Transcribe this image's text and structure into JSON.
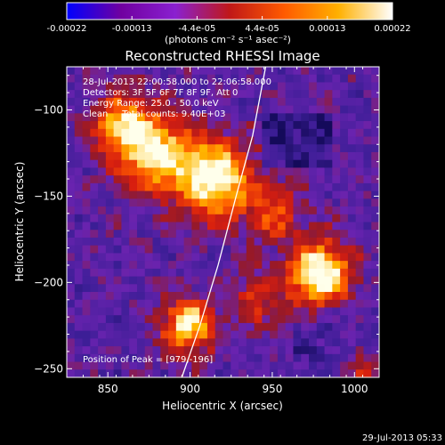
{
  "chart_data": {
    "type": "heatmap",
    "title": "Reconstructed RHESSI Image",
    "colorbar": {
      "tick_labels": [
        "-0.00022",
        "-0.00013",
        "-4.4e-05",
        "4.4e-05",
        "0.00013",
        "0.00022"
      ],
      "units": "(photons cm⁻² s⁻¹ asec⁻²)",
      "colors": [
        "#0000ff",
        "#7000a0",
        "#8a20d0",
        "#c01818",
        "#ff5a00",
        "#ffb000",
        "#ffffff"
      ]
    },
    "xlabel": "Heliocentric X (arcsec)",
    "ylabel": "Heliocentric Y (arcsec)",
    "xlim": [
      825,
      1015
    ],
    "ylim": [
      -255,
      -75
    ],
    "xticks": [
      850,
      900,
      950,
      1000
    ],
    "yticks": [
      -100,
      -150,
      -200,
      -250
    ],
    "annotations": [
      "28-Jul-2013 22:00:58.000 to 22:06:58.000",
      "Detectors: 3F 5F 6F 7F 8F 9F, Att 0",
      "Energy Range: 25.0 - 50.0 keV",
      "Clean     Total counts: 9.40E+03"
    ],
    "peak_label": "Position of Peak = [979,-196]",
    "peak": [
      979,
      -196
    ],
    "limb": [
      [
        946,
        -75
      ],
      [
        938,
        -115
      ],
      [
        928,
        -150
      ],
      [
        917,
        -190
      ],
      [
        906,
        -225
      ],
      [
        895,
        -255
      ]
    ],
    "sources": [
      {
        "x": 979,
        "y": -195,
        "amp": 1.0,
        "sigma": 13
      },
      {
        "x": 915,
        "y": -140,
        "amp": 0.95,
        "sigma": 16
      },
      {
        "x": 878,
        "y": -125,
        "amp": 0.85,
        "sigma": 15
      },
      {
        "x": 858,
        "y": -108,
        "amp": 0.65,
        "sigma": 12
      },
      {
        "x": 899,
        "y": -225,
        "amp": 0.85,
        "sigma": 11
      },
      {
        "x": 952,
        "y": -160,
        "amp": 0.45,
        "sigma": 11
      },
      {
        "x": 940,
        "y": -210,
        "amp": 0.35,
        "sigma": 12
      },
      {
        "x": 1005,
        "y": -250,
        "amp": 0.35,
        "sigma": 10
      }
    ],
    "grid": false
  },
  "footer": {
    "timestamp": "29-Jul-2013 05:33"
  }
}
